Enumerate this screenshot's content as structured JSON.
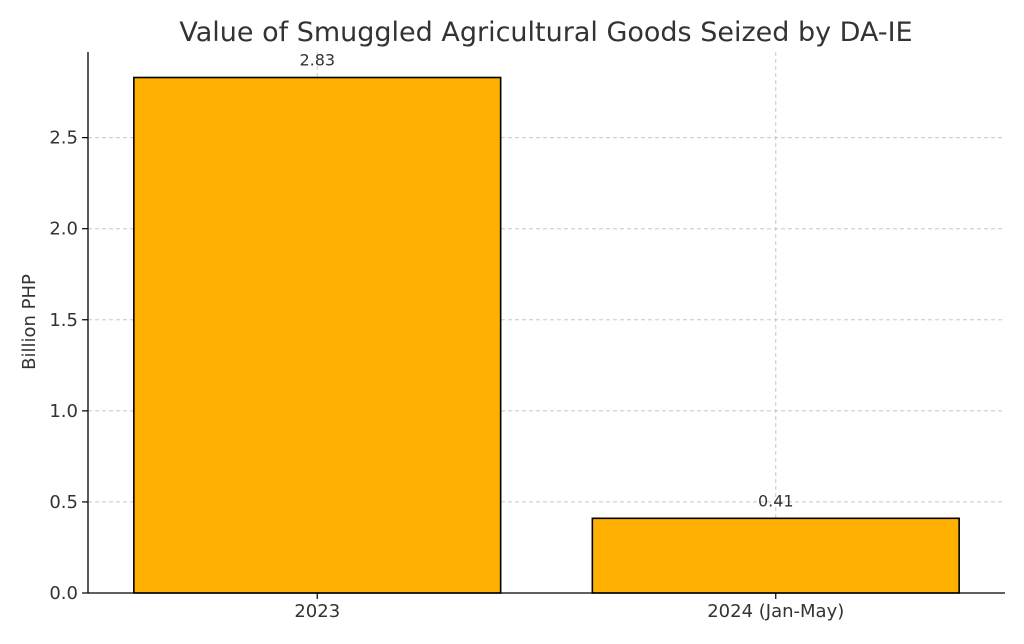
{
  "chart_data": {
    "type": "bar",
    "title": "Value of Smuggled Agricultural Goods Seized by DA-IE",
    "xlabel": "",
    "ylabel": "Billion PHP",
    "categories": [
      "2023",
      "2024 (Jan-May)"
    ],
    "values": [
      2.83,
      0.41
    ],
    "data_labels": [
      "2.83",
      "0.41"
    ],
    "ylim": [
      0,
      2.97
    ],
    "yticks": [
      0.0,
      0.5,
      1.0,
      1.5,
      2.0,
      2.5
    ],
    "ytick_labels": [
      "0.0",
      "0.5",
      "1.0",
      "1.5",
      "2.0",
      "2.5"
    ],
    "grid": true,
    "bar_color": "#FFB000",
    "bar_edge_color": "#000000",
    "text_color": "#333333",
    "grid_color": "#c8c8c8"
  }
}
